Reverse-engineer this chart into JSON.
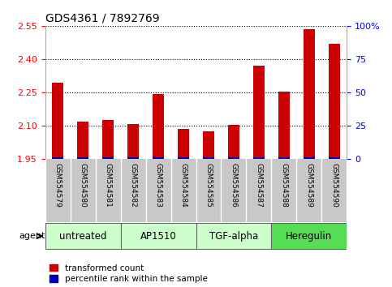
{
  "title": "GDS4361 / 7892769",
  "samples": [
    "GSM554579",
    "GSM554580",
    "GSM554581",
    "GSM554582",
    "GSM554583",
    "GSM554584",
    "GSM554585",
    "GSM554586",
    "GSM554587",
    "GSM554588",
    "GSM554589",
    "GSM554590"
  ],
  "red_values": [
    2.295,
    2.12,
    2.125,
    2.11,
    2.245,
    2.085,
    2.075,
    2.105,
    2.37,
    2.255,
    2.535,
    2.47
  ],
  "blue_pct": [
    1,
    1,
    1,
    1,
    1,
    1,
    1,
    1,
    1,
    1,
    1,
    1
  ],
  "ylim_left": [
    1.95,
    2.55
  ],
  "ylim_right": [
    0,
    100
  ],
  "yticks_left": [
    1.95,
    2.1,
    2.25,
    2.4,
    2.55
  ],
  "yticks_right": [
    0,
    25,
    50,
    75,
    100
  ],
  "groups": [
    {
      "label": "untreated",
      "start": 0,
      "end": 2,
      "color": "#ccffcc"
    },
    {
      "label": "AP1510",
      "start": 3,
      "end": 5,
      "color": "#ccffcc"
    },
    {
      "label": "TGF-alpha",
      "start": 6,
      "end": 8,
      "color": "#ccffcc"
    },
    {
      "label": "Heregulin",
      "start": 9,
      "end": 11,
      "color": "#55dd55"
    }
  ],
  "red_color": "#cc0000",
  "blue_color": "#0000bb",
  "bar_width": 0.45,
  "legend_red": "transformed count",
  "legend_blue": "percentile rank within the sample",
  "agent_label": "agent",
  "baseline": 1.95,
  "xticklabel_bg": "#c8c8c8",
  "title_fontsize": 10,
  "tick_fontsize": 8,
  "sample_fontsize": 6.5,
  "group_fontsize": 8.5
}
